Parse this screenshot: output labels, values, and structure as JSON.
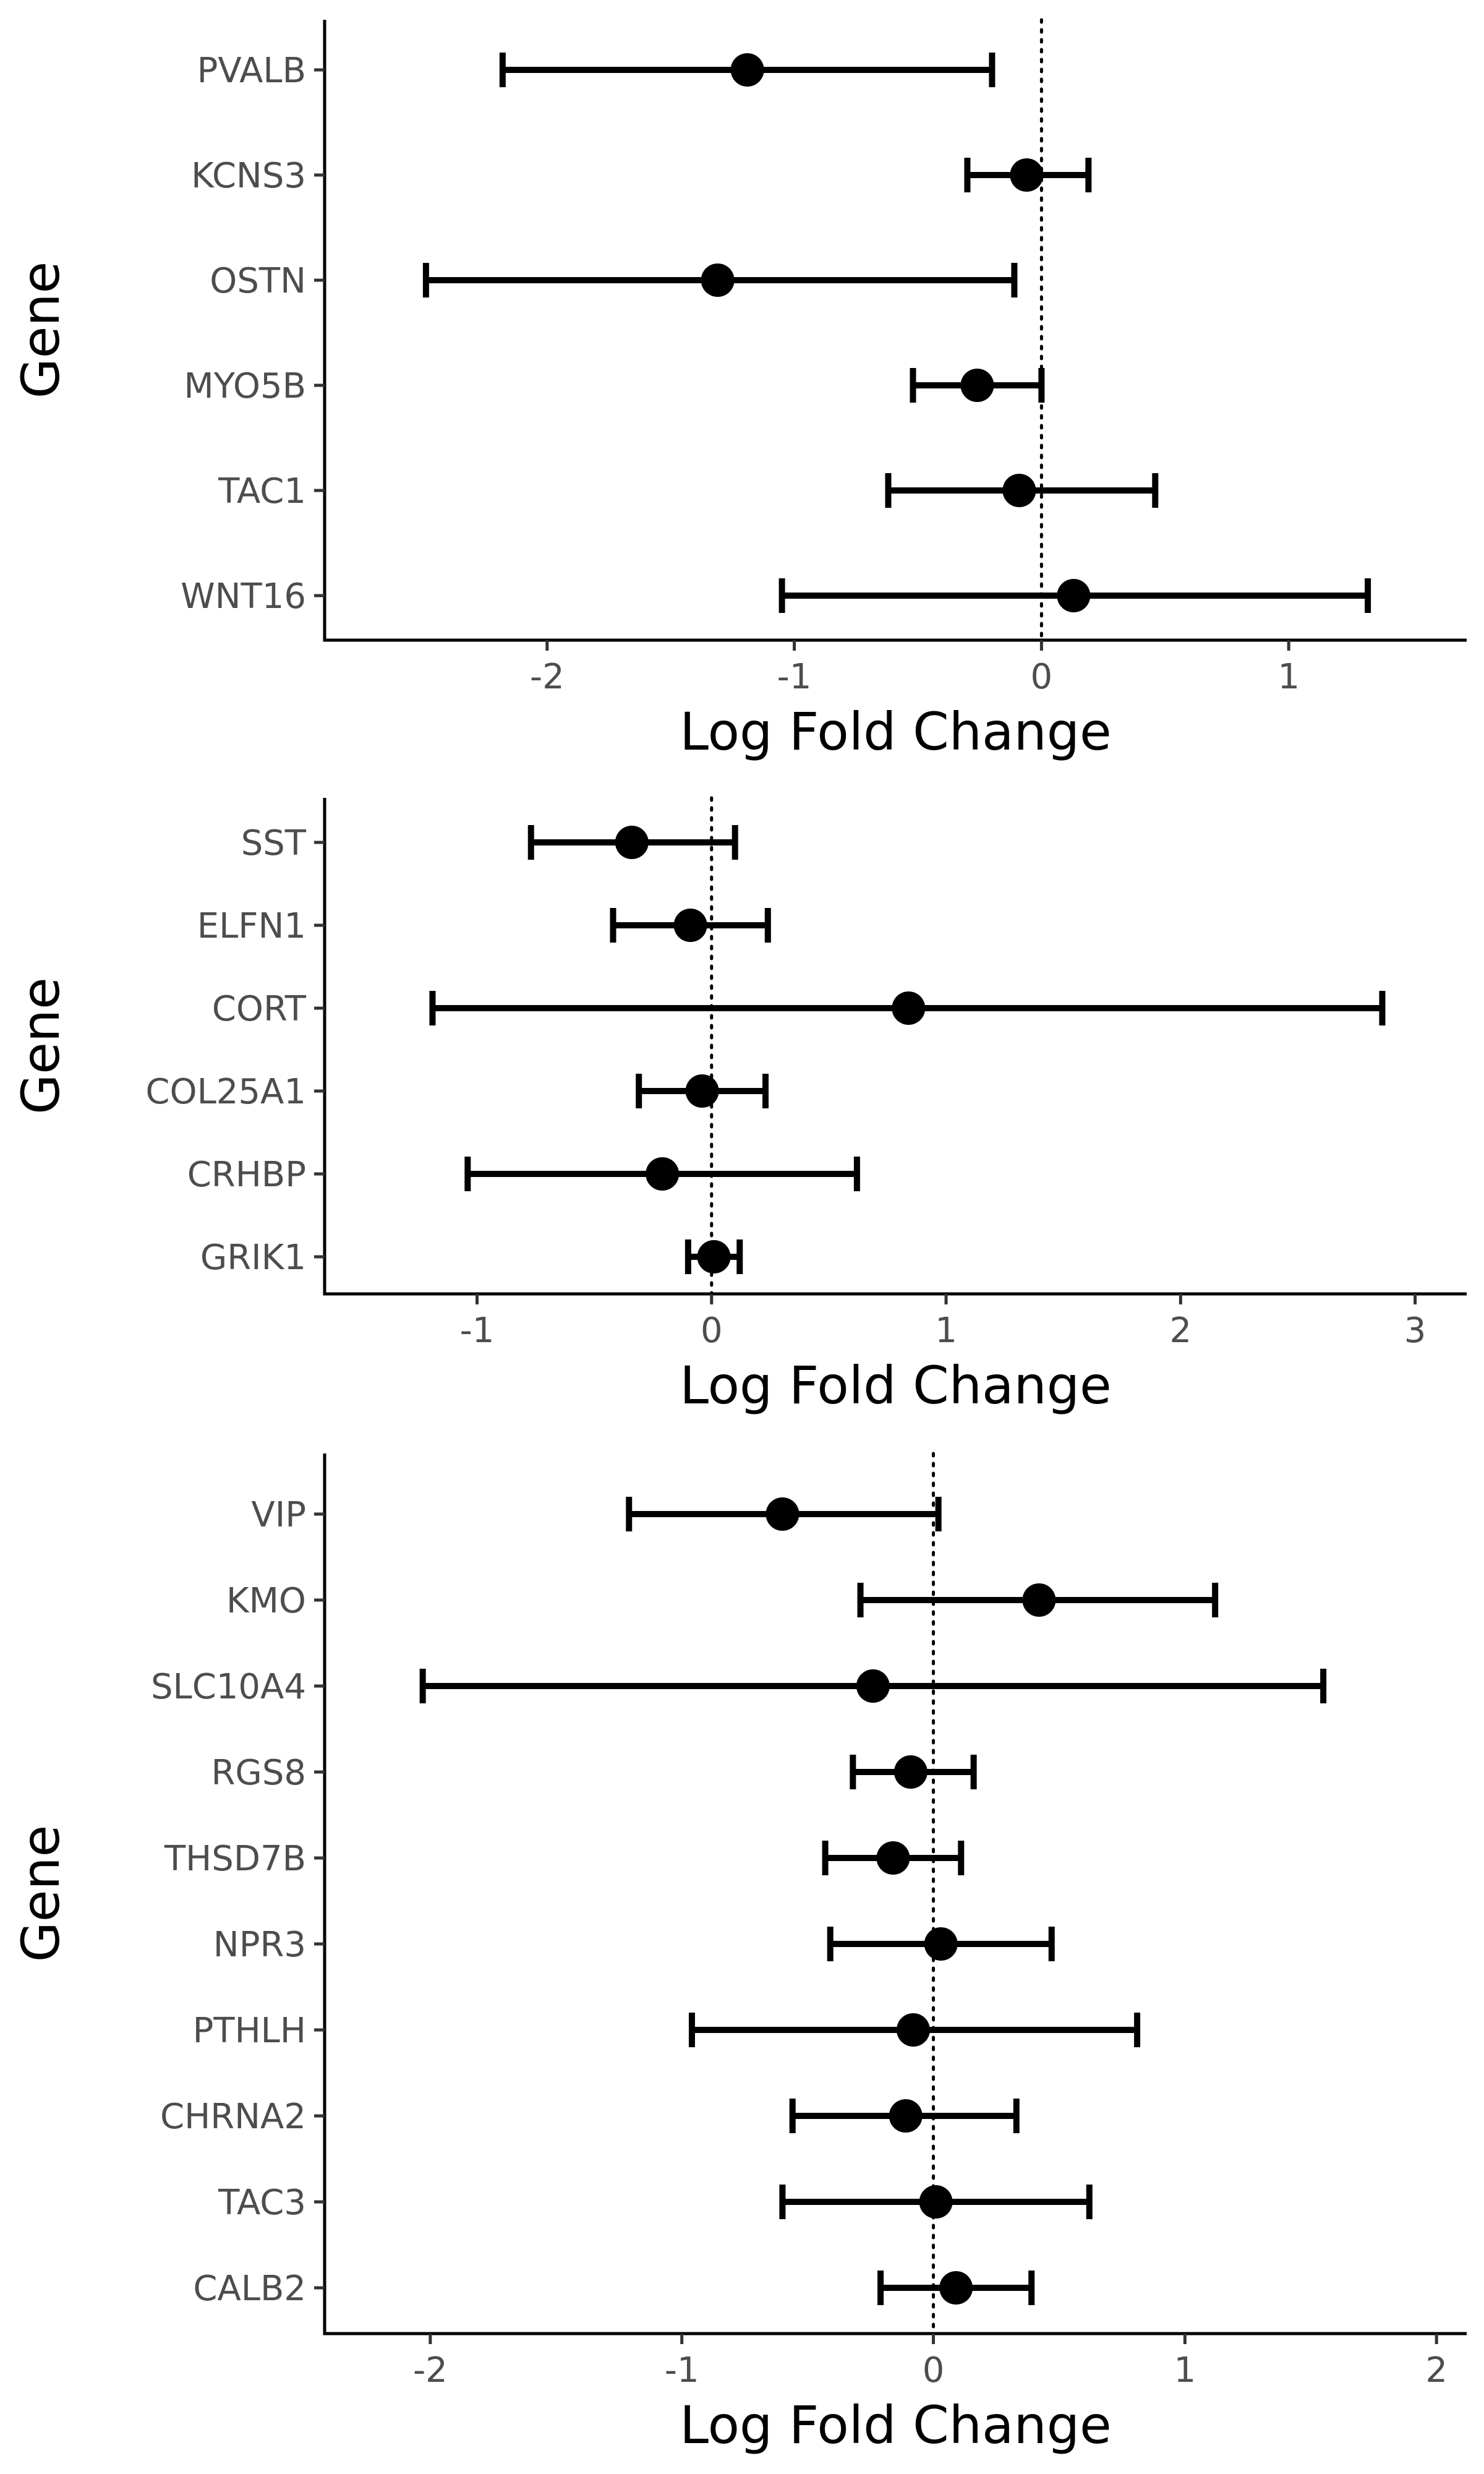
{
  "chart_data": [
    {
      "type": "forest",
      "xlabel": "Log Fold Change",
      "ylabel": "Gene",
      "xlim": [
        -2.9,
        1.72
      ],
      "xticks": [
        -2,
        -1,
        0,
        1
      ],
      "reference_line": 0,
      "genes": [
        "PVALB",
        "KCNS3",
        "OSTN",
        "MYO5B",
        "TAC1",
        "WNT16"
      ],
      "estimates": [
        -1.19,
        -0.06,
        -1.31,
        -0.26,
        -0.09,
        0.13
      ],
      "lower": [
        -2.18,
        -0.3,
        -2.49,
        -0.52,
        -0.62,
        -1.05
      ],
      "upper": [
        -0.2,
        0.19,
        -0.11,
        0.0,
        0.46,
        1.32
      ]
    },
    {
      "type": "forest",
      "xlabel": "Log Fold Change",
      "ylabel": "Gene",
      "xlim": [
        -1.65,
        3.22
      ],
      "xticks": [
        -1,
        0,
        1,
        2,
        3
      ],
      "reference_line": 0,
      "genes": [
        "SST",
        "ELFN1",
        "CORT",
        "COL25A1",
        "CRHBP",
        "GRIK1"
      ],
      "estimates": [
        -0.34,
        -0.09,
        0.84,
        -0.04,
        -0.21,
        0.01
      ],
      "lower": [
        -0.77,
        -0.42,
        -1.19,
        -0.31,
        -1.04,
        -0.1
      ],
      "upper": [
        0.1,
        0.24,
        2.86,
        0.23,
        0.62,
        0.12
      ]
    },
    {
      "type": "forest",
      "xlabel": "Log Fold Change",
      "ylabel": "Gene",
      "xlim": [
        -2.42,
        2.12
      ],
      "xticks": [
        -2,
        -1,
        0,
        1,
        2
      ],
      "reference_line": 0,
      "genes": [
        "VIP",
        "KMO",
        "SLC10A4",
        "RGS8",
        "THSD7B",
        "NPR3",
        "PTHLH",
        "CHRNA2",
        "TAC3",
        "CALB2"
      ],
      "estimates": [
        -0.6,
        0.42,
        -0.24,
        -0.09,
        -0.16,
        0.03,
        -0.08,
        -0.11,
        0.01,
        0.09
      ],
      "lower": [
        -1.21,
        -0.29,
        -2.03,
        -0.32,
        -0.43,
        -0.41,
        -0.96,
        -0.56,
        -0.6,
        -0.21
      ],
      "upper": [
        0.02,
        1.12,
        1.55,
        0.16,
        0.11,
        0.47,
        0.81,
        0.33,
        0.62,
        0.39
      ]
    }
  ]
}
